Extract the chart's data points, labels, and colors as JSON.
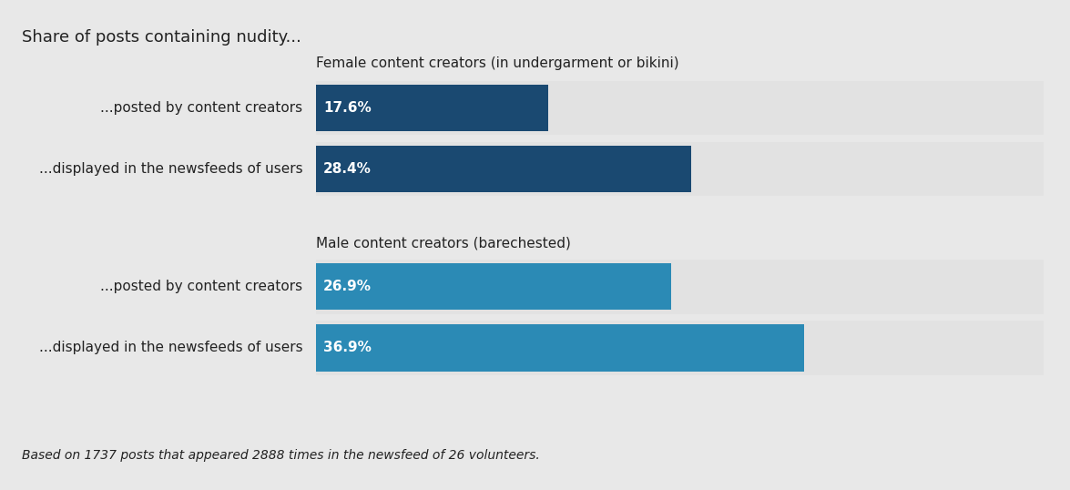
{
  "title": "Share of posts containing nudity...",
  "footnote": "Based on 1737 posts that appeared 2888 times in the newsfeed of 26 volunteers.",
  "background_color": "#e8e8e8",
  "row_bg_color": "#e2e2e2",
  "section1_label": "Female content creators (in undergarment or bikini)",
  "section2_label": "Male content creators (barechested)",
  "bars": [
    {
      "label": "...posted by content creators",
      "value": 17.6,
      "color": "#1a4971",
      "section": 1
    },
    {
      "label": "...displayed in the newsfeeds of users",
      "value": 28.4,
      "color": "#1a4971",
      "section": 1
    },
    {
      "label": "...posted by content creators",
      "value": 26.9,
      "color": "#2b8ab5",
      "section": 2
    },
    {
      "label": "...displayed in the newsfeeds of users",
      "value": 36.9,
      "color": "#2b8ab5",
      "section": 2
    }
  ],
  "max_value": 55,
  "label_color": "#222222",
  "value_color": "#ffffff",
  "title_fontsize": 13,
  "label_fontsize": 11,
  "value_fontsize": 11,
  "section_label_fontsize": 11,
  "footnote_fontsize": 10,
  "bar_bg_color": "#d0d0d0"
}
